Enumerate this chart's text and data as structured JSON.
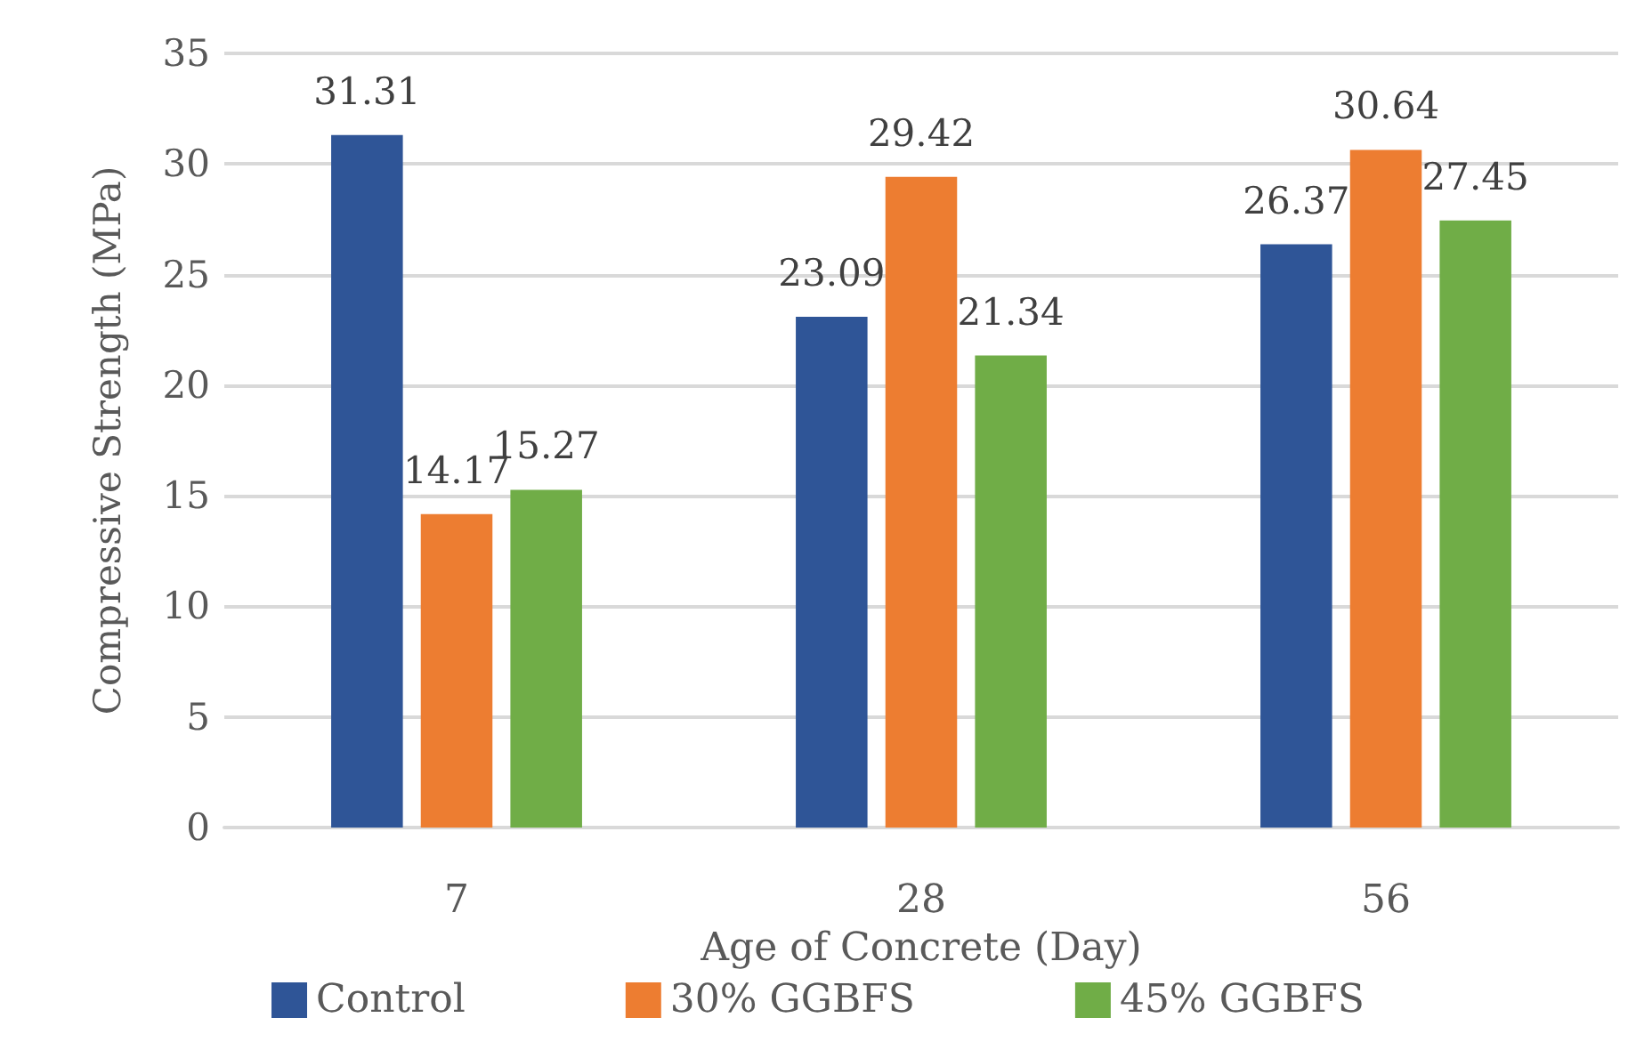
{
  "chart_data": {
    "type": "bar",
    "xlabel": "Age of Concrete (Day)",
    "ylabel": "Compressive Strength (MPa)",
    "categories": [
      "7",
      "28",
      "56"
    ],
    "series": [
      {
        "name": "Control",
        "color": "#2f5597",
        "values": [
          31.31,
          23.09,
          26.37
        ]
      },
      {
        "name": "30% GGBFS",
        "color": "#ed7d31",
        "values": [
          14.17,
          29.42,
          30.64
        ]
      },
      {
        "name": "45% GGBFS",
        "color": "#70ad47",
        "values": [
          15.27,
          21.34,
          27.45
        ]
      }
    ],
    "ylim": [
      0,
      35
    ],
    "yticks": [
      0,
      5,
      10,
      15,
      20,
      25,
      30,
      35
    ],
    "grid": "y",
    "legend": "bottom",
    "data_labels": true
  }
}
